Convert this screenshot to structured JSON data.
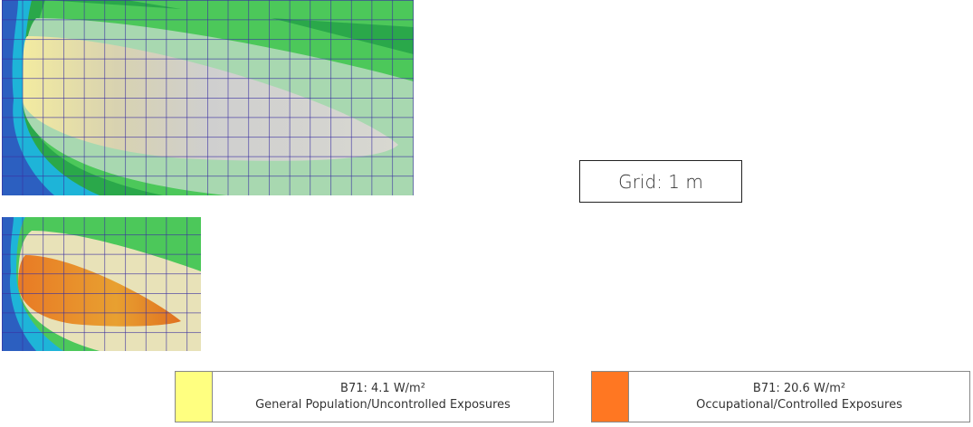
{
  "grid_label": "Grid: 1 m",
  "legend": [
    {
      "title": "B71: 4.1 W/m²",
      "description": "General Population/Uncontrolled Exposures",
      "color": "#ffff80"
    },
    {
      "title": "B71: 20.6 W/m²",
      "description": "Occupational/Controlled Exposures",
      "color": "#ff7722"
    }
  ]
}
